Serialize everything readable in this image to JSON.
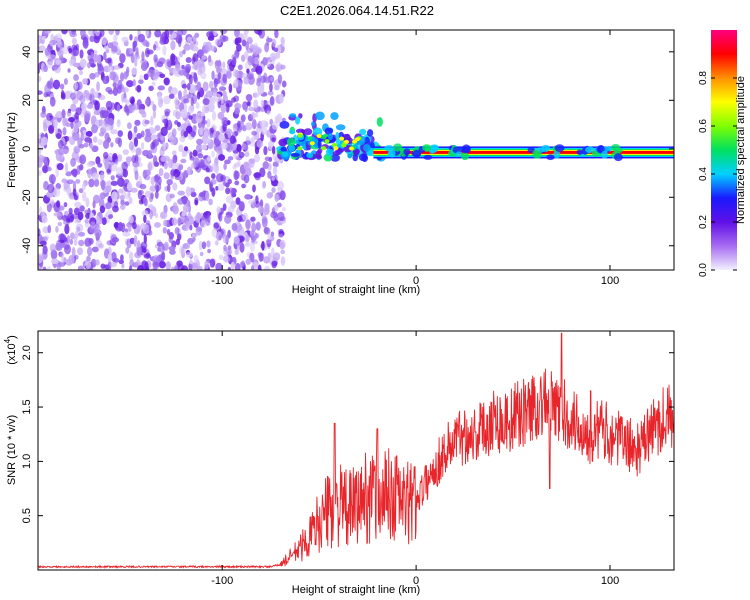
{
  "title": "C2E1.2026.064.14.51.R22",
  "chart_data": [
    {
      "type": "heatmap",
      "xlabel": "Height of straight line (km)",
      "ylabel": "Frequency (Hz)",
      "xlim": [
        -195,
        133
      ],
      "ylim": [
        -50,
        49
      ],
      "xticks": [
        -100,
        0,
        100
      ],
      "yticks": [
        40,
        20,
        0,
        -20,
        -40
      ],
      "xtick_labels": [
        "-100",
        "0",
        "100"
      ],
      "ytick_labels": [
        "40",
        "20",
        "0",
        "-20",
        "-40"
      ],
      "colorbar": {
        "label": "Normalized spectral amplitude",
        "ticks": [
          0.0,
          0.2,
          0.4,
          0.6,
          0.8
        ],
        "tick_labels": [
          "0.0",
          "0.2",
          "0.4",
          "0.6",
          "0.8"
        ],
        "colors": [
          "#f2f0ff",
          "#a76cf2",
          "#6010e6",
          "#1a1aff",
          "#00d0ff",
          "#00e060",
          "#80ff00",
          "#ffff00",
          "#ff9000",
          "#ff0000",
          "#ff0080"
        ]
      },
      "noise_region_x": [
        -195,
        -68
      ],
      "signal_line_y": -1.5
    },
    {
      "type": "line",
      "xlabel": "Height of straight line (km)",
      "ylabel": "SNR (10 * v/v)",
      "yscale_note": "(x10",
      "yscale_exp": "4",
      "xlim": [
        -195,
        133
      ],
      "ylim": [
        0,
        2.2
      ],
      "xticks": [
        -100,
        0,
        100
      ],
      "yticks": [
        0.5,
        1.0,
        1.5,
        2.0
      ],
      "xtick_labels": [
        "-100",
        "0",
        "100"
      ],
      "ytick_labels": [
        "0.5",
        "1.0",
        "1.5",
        "2.0"
      ],
      "color": "#e8252a",
      "x": [
        -195,
        -150,
        -100,
        -75,
        -70,
        -65,
        -60,
        -55,
        -50,
        -45,
        -40,
        -35,
        -30,
        -25,
        -20,
        -15,
        -10,
        -5,
        0,
        5,
        10,
        15,
        20,
        25,
        30,
        35,
        40,
        45,
        50,
        55,
        60,
        65,
        70,
        75,
        80,
        85,
        90,
        95,
        100,
        105,
        110,
        115,
        120,
        125,
        130,
        133
      ],
      "y": [
        0.03,
        0.03,
        0.03,
        0.03,
        0.05,
        0.12,
        0.2,
        0.3,
        0.45,
        0.55,
        0.6,
        0.55,
        0.6,
        0.7,
        0.65,
        0.7,
        0.65,
        0.6,
        0.65,
        0.8,
        0.95,
        1.1,
        1.2,
        1.25,
        1.25,
        1.3,
        1.4,
        1.35,
        1.4,
        1.45,
        1.5,
        1.55,
        1.5,
        1.45,
        1.4,
        1.3,
        1.25,
        1.3,
        1.25,
        1.2,
        1.15,
        1.1,
        1.25,
        1.35,
        1.45,
        1.2
      ],
      "peaks": [
        {
          "x": -42,
          "y": 1.35
        },
        {
          "x": -20,
          "y": 1.3
        },
        {
          "x": -10,
          "y": 1.05
        },
        {
          "x": 69,
          "y": 0.75
        },
        {
          "x": 75,
          "y": 2.18
        },
        {
          "x": 90,
          "y": 1.65
        }
      ]
    }
  ]
}
